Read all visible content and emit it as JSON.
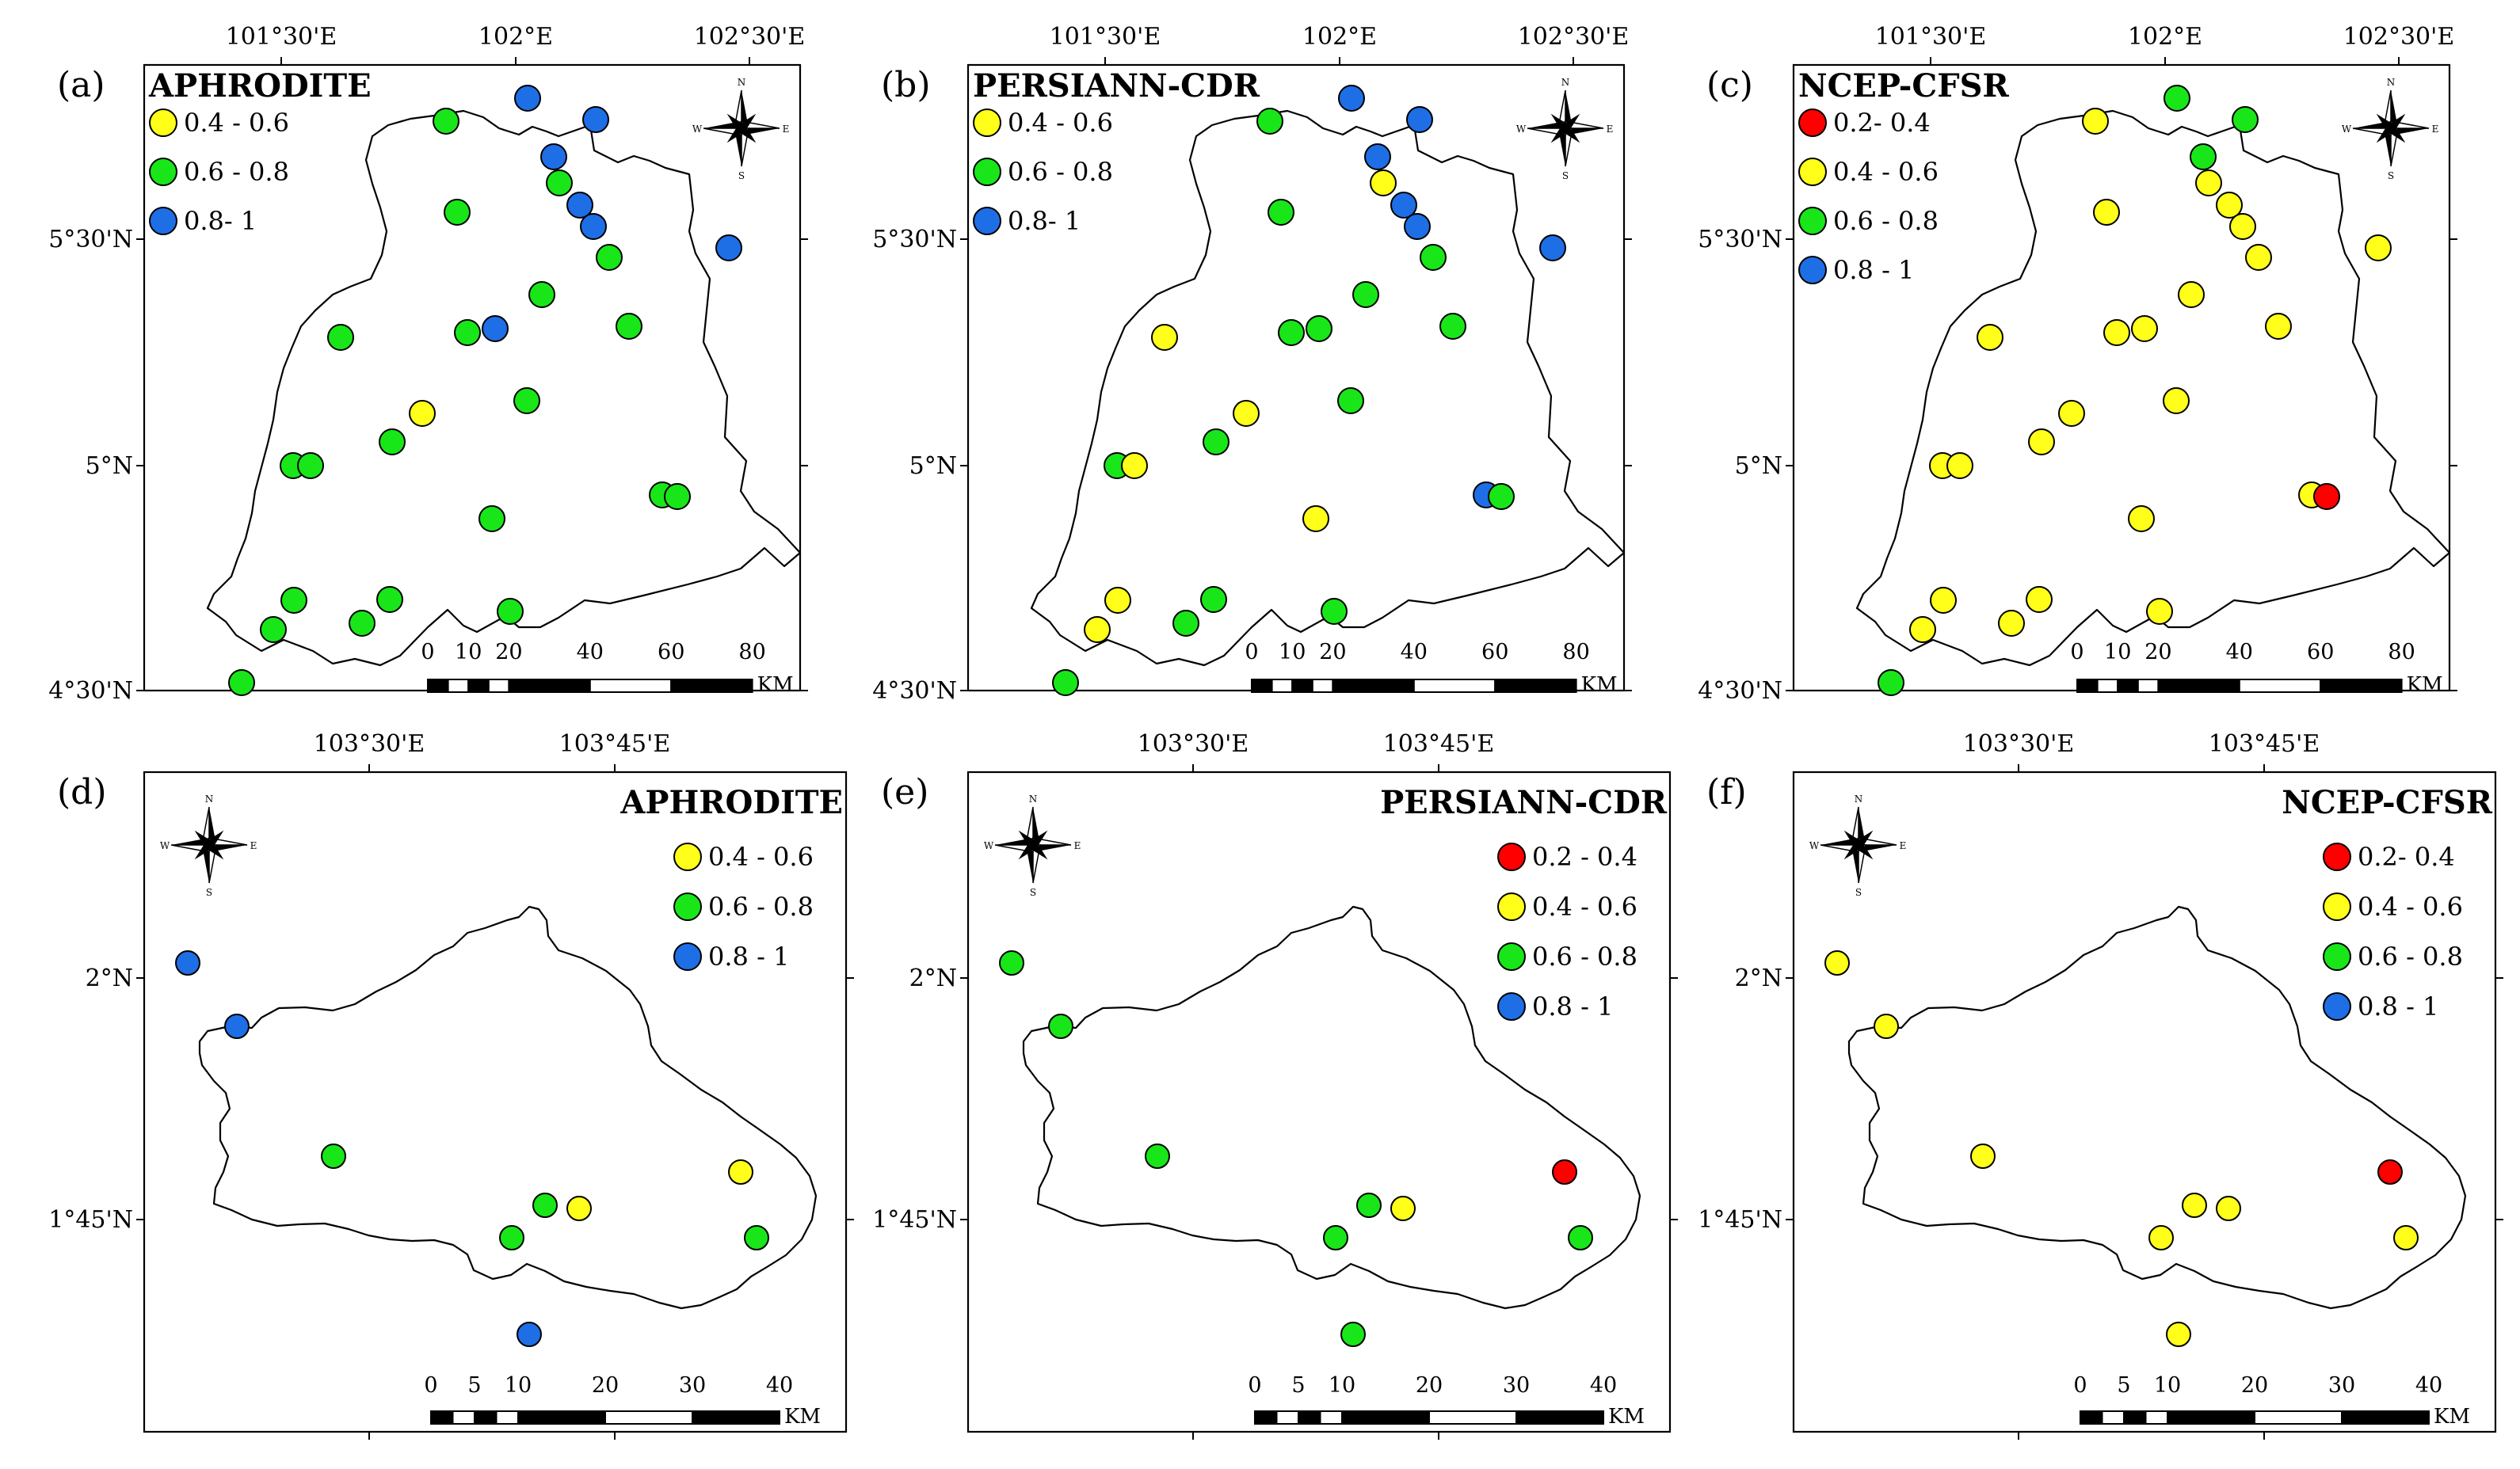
{
  "colors": {
    "0.2 - 0.4": "#ff0000",
    "0.4 - 0.6": "#ffff19",
    "0.6 - 0.8": "#19e619",
    "0.8 - 1": "#1e6ee6"
  },
  "panels": [
    {
      "letter": "(a)",
      "product": "APHRODITE",
      "region": "north",
      "legend": [
        {
          "label": "0.4 - 0.6",
          "cls": "0.4 - 0.6"
        },
        {
          "label": "0.6 - 0.8",
          "cls": "0.6 - 0.8"
        },
        {
          "label": "0.8- 1",
          "cls": "0.8 - 1"
        }
      ],
      "stations": [
        "0.6 - 0.8",
        "0.8 - 1",
        "0.8 - 1",
        "0.8 - 1",
        "0.6 - 0.8",
        "0.6 - 0.8",
        "0.8 - 1",
        "0.8 - 1",
        "0.6 - 0.8",
        "0.8 - 1",
        "0.8 - 1",
        "0.6 - 0.8",
        "0.6 - 0.8",
        "0.6 - 0.8",
        "0.6 - 0.8",
        "0.6 - 0.8",
        "0.4 - 0.6",
        "0.6 - 0.8",
        "0.6 - 0.8",
        "0.6 - 0.8",
        "0.6 - 0.8",
        "0.6 - 0.8",
        "0.6 - 0.8",
        "0.6 - 0.8",
        "0.6 - 0.8",
        "0.6 - 0.8",
        "0.6 - 0.8",
        "0.6 - 0.8",
        "0.6 - 0.8"
      ]
    },
    {
      "letter": "(b)",
      "product": "PERSIANN-CDR",
      "region": "north",
      "legend": [
        {
          "label": "0.4 - 0.6",
          "cls": "0.4 - 0.6"
        },
        {
          "label": "0.6 - 0.8",
          "cls": "0.6 - 0.8"
        },
        {
          "label": "0.8- 1",
          "cls": "0.8 - 1"
        }
      ],
      "stations": [
        "0.6 - 0.8",
        "0.8 - 1",
        "0.8 - 1",
        "0.8 - 1",
        "0.4 - 0.6",
        "0.6 - 0.8",
        "0.8 - 1",
        "0.8 - 1",
        "0.6 - 0.8",
        "0.8 - 1",
        "0.6 - 0.8",
        "0.6 - 0.8",
        "0.6 - 0.8",
        "0.6 - 0.8",
        "0.4 - 0.6",
        "0.6 - 0.8",
        "0.4 - 0.6",
        "0.6 - 0.8",
        "0.6 - 0.8",
        "0.4 - 0.6",
        "0.4 - 0.6",
        "0.8 - 1",
        "0.6 - 0.8",
        "0.6 - 0.8",
        "0.4 - 0.6",
        "0.6 - 0.8",
        "0.4 - 0.6",
        "0.6 - 0.8",
        "0.6 - 0.8"
      ]
    },
    {
      "letter": "(c)",
      "product": "NCEP-CFSR",
      "region": "north",
      "legend": [
        {
          "label": "0.2- 0.4",
          "cls": "0.2 - 0.4"
        },
        {
          "label": "0.4 - 0.6",
          "cls": "0.4 - 0.6"
        },
        {
          "label": "0.6 - 0.8",
          "cls": "0.6 - 0.8"
        },
        {
          "label": "0.8 - 1",
          "cls": "0.8 - 1"
        }
      ],
      "stations": [
        "0.4 - 0.6",
        "0.6 - 0.8",
        "0.6 - 0.8",
        "0.6 - 0.8",
        "0.4 - 0.6",
        "0.4 - 0.6",
        "0.4 - 0.6",
        "0.4 - 0.6",
        "0.4 - 0.6",
        "0.4 - 0.6",
        "0.4 - 0.6",
        "0.4 - 0.6",
        "0.4 - 0.6",
        "0.4 - 0.6",
        "0.4 - 0.6",
        "0.4 - 0.6",
        "0.4 - 0.6",
        "0.4 - 0.6",
        "0.4 - 0.6",
        "0.4 - 0.6",
        "0.4 - 0.6",
        "0.4 - 0.6",
        "0.2 - 0.4",
        "0.4 - 0.6",
        "0.4 - 0.6",
        "0.4 - 0.6",
        "0.4 - 0.6",
        "0.4 - 0.6",
        "0.6 - 0.8"
      ]
    },
    {
      "letter": "(d)",
      "product": "APHRODITE",
      "region": "south",
      "legend": [
        {
          "label": "0.4 - 0.6",
          "cls": "0.4 - 0.6"
        },
        {
          "label": "0.6 - 0.8",
          "cls": "0.6 - 0.8"
        },
        {
          "label": "0.8 - 1",
          "cls": "0.8 - 1"
        }
      ],
      "stations": [
        "0.8 - 1",
        "0.8 - 1",
        "0.6 - 0.8",
        "0.4 - 0.6",
        "0.6 - 0.8",
        "0.4 - 0.6",
        "0.6 - 0.8",
        "0.6 - 0.8",
        "0.8 - 1"
      ]
    },
    {
      "letter": "(e)",
      "product": "PERSIANN-CDR",
      "region": "south",
      "legend": [
        {
          "label": "0.2 - 0.4",
          "cls": "0.2 - 0.4"
        },
        {
          "label": "0.4 - 0.6",
          "cls": "0.4 - 0.6"
        },
        {
          "label": "0.6 - 0.8",
          "cls": "0.6 - 0.8"
        },
        {
          "label": "0.8 - 1",
          "cls": "0.8 - 1"
        }
      ],
      "stations": [
        "0.6 - 0.8",
        "0.6 - 0.8",
        "0.6 - 0.8",
        "0.2 - 0.4",
        "0.6 - 0.8",
        "0.4 - 0.6",
        "0.6 - 0.8",
        "0.6 - 0.8",
        "0.6 - 0.8"
      ]
    },
    {
      "letter": "(f)",
      "product": "NCEP-CFSR",
      "region": "south",
      "legend": [
        {
          "label": "0.2- 0.4",
          "cls": "0.2 - 0.4"
        },
        {
          "label": "0.4 - 0.6",
          "cls": "0.4 - 0.6"
        },
        {
          "label": "0.6 - 0.8",
          "cls": "0.6 - 0.8"
        },
        {
          "label": "0.8 - 1",
          "cls": "0.8 - 1"
        }
      ],
      "stations": [
        "0.4 - 0.6",
        "0.4 - 0.6",
        "0.4 - 0.6",
        "0.2 - 0.4",
        "0.4 - 0.6",
        "0.4 - 0.6",
        "0.4 - 0.6",
        "0.4 - 0.6",
        "0.4 - 0.6"
      ]
    }
  ],
  "north_axes": {
    "lon_labels": [
      "101°30'E",
      "102°E",
      "102°30'E"
    ],
    "lat_labels": [
      "5°30'N",
      "5°N",
      "4°30'N"
    ],
    "scale_labels": [
      "0",
      "10",
      "20",
      "40",
      "60",
      "80"
    ],
    "scale_unit": "KM"
  },
  "south_axes": {
    "lon_labels": [
      "103°30'E",
      "103°45'E"
    ],
    "lat_labels": [
      "2°N",
      "1°45'N"
    ],
    "scale_labels": [
      "0",
      "5",
      "10",
      "20",
      "30",
      "40"
    ],
    "scale_unit": "KM"
  },
  "compass": {
    "n": "N",
    "s": "S",
    "e": "E",
    "w": "W"
  }
}
